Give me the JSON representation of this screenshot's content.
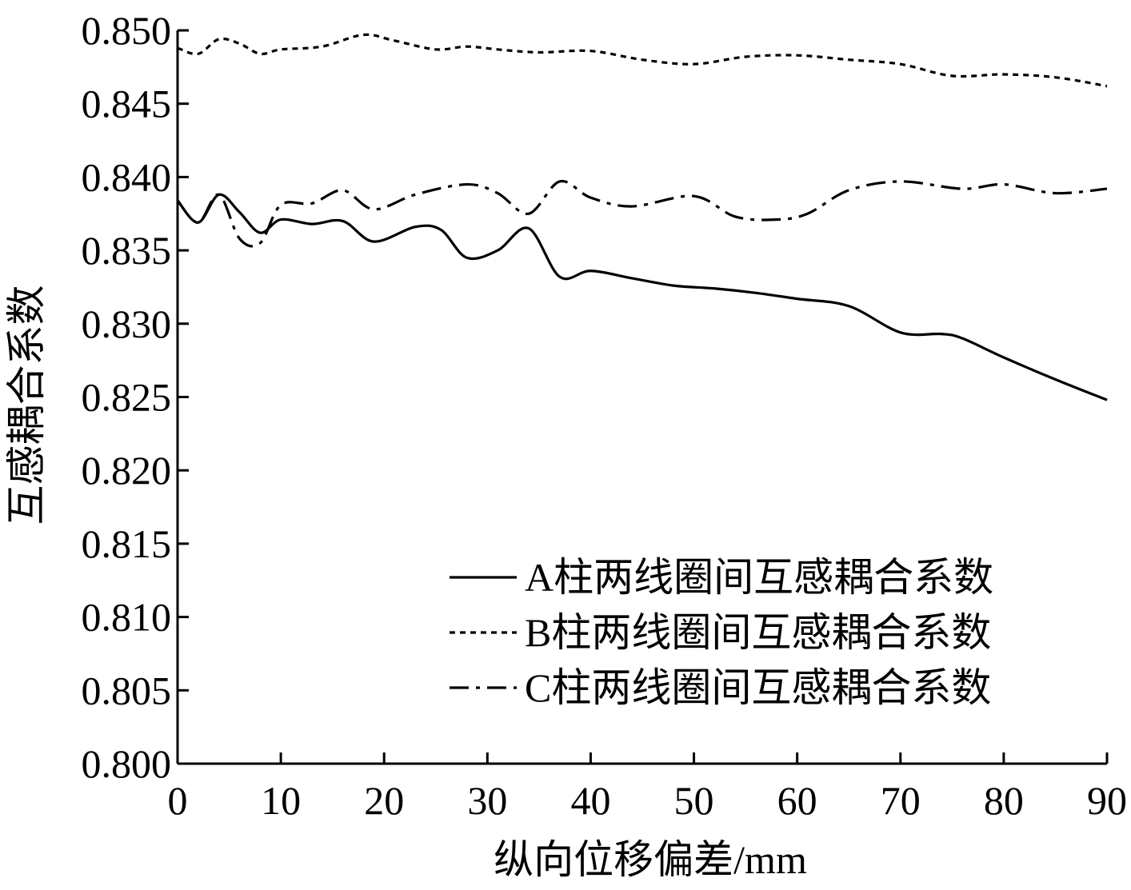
{
  "chart_data": {
    "type": "line",
    "xlabel": "纵向位移偏差/mm",
    "ylabel": "互感耦合系数",
    "xlim": [
      0,
      90
    ],
    "ylim": [
      0.8,
      0.85
    ],
    "x_ticks": [
      "0",
      "10",
      "20",
      "30",
      "40",
      "50",
      "60",
      "70",
      "80",
      "90"
    ],
    "y_ticks": [
      "0.800",
      "0.805",
      "0.810",
      "0.815",
      "0.820",
      "0.825",
      "0.830",
      "0.835",
      "0.840",
      "0.845",
      "0.850"
    ],
    "legend_position": "bottom-right",
    "grid": false,
    "series": [
      {
        "name": "A柱两线圈间互感耦合系数",
        "style": "solid",
        "color": "#000000",
        "x": [
          0,
          2,
          4,
          6,
          8,
          10,
          13,
          16,
          19,
          23,
          25.5,
          28,
          31,
          34,
          37,
          40,
          44,
          48,
          52,
          56,
          60,
          65,
          70,
          74,
          76,
          80,
          85,
          90
        ],
        "y": [
          0.8384,
          0.8369,
          0.8388,
          0.8376,
          0.8362,
          0.8371,
          0.8368,
          0.837,
          0.8356,
          0.8366,
          0.8364,
          0.8345,
          0.835,
          0.8365,
          0.8332,
          0.8336,
          0.8331,
          0.8326,
          0.8324,
          0.8321,
          0.8317,
          0.8312,
          0.8294,
          0.8293,
          0.829,
          0.8277,
          0.8262,
          0.8248
        ]
      },
      {
        "name": "B柱两线圈间互感耦合系数",
        "style": "dotted",
        "color": "#000000",
        "x": [
          0,
          2,
          4,
          6,
          8,
          10,
          14,
          18,
          21,
          25,
          28,
          31,
          35,
          40,
          45,
          50,
          55,
          60,
          65,
          70,
          75,
          80,
          85,
          90
        ],
        "y": [
          0.8488,
          0.8484,
          0.8494,
          0.8491,
          0.8484,
          0.8487,
          0.8489,
          0.8497,
          0.8493,
          0.8487,
          0.8489,
          0.8487,
          0.8485,
          0.8486,
          0.848,
          0.8477,
          0.8482,
          0.8483,
          0.848,
          0.8477,
          0.8469,
          0.847,
          0.8468,
          0.8462
        ]
      },
      {
        "name": "C柱两线圈间互感耦合系数",
        "style": "dash-dot",
        "color": "#000000",
        "x": [
          0,
          2,
          4,
          6,
          8,
          10,
          13,
          16,
          19,
          23,
          28,
          31,
          34,
          37,
          40,
          44,
          50,
          54,
          58,
          61,
          65,
          70,
          76,
          80,
          85,
          90
        ],
        "y": [
          0.8384,
          0.8369,
          0.8388,
          0.8358,
          0.8355,
          0.8381,
          0.8382,
          0.8391,
          0.8378,
          0.8388,
          0.8395,
          0.8389,
          0.8375,
          0.8397,
          0.8386,
          0.838,
          0.8387,
          0.8373,
          0.8371,
          0.8375,
          0.8391,
          0.8397,
          0.8392,
          0.8395,
          0.8389,
          0.8392
        ]
      }
    ]
  }
}
